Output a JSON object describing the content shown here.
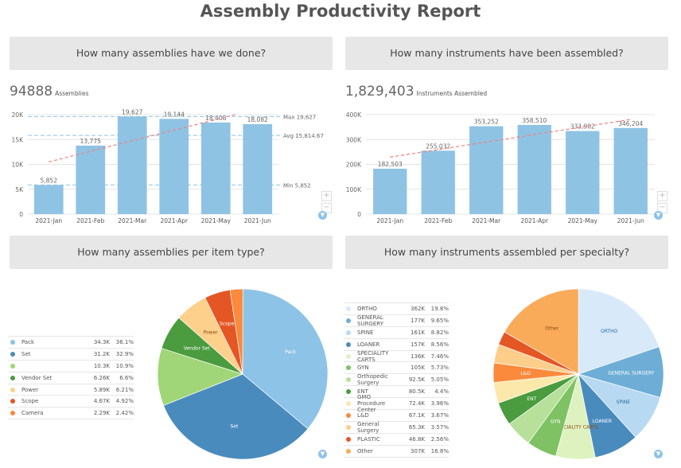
{
  "title": "Assembly Productivity Report",
  "panels": {
    "assemblies": {
      "header": "How many assemblies have we done?",
      "kpi_value": "94888",
      "kpi_label": "Assemblies"
    },
    "instruments": {
      "header": "How many instruments have been assembled?",
      "kpi_value": "1,829,403",
      "kpi_label": "Instruments Assembled"
    },
    "item_type": {
      "header": "How many assemblies per item type?"
    },
    "specialty": {
      "header": "How many instruments assembled per specialty?"
    }
  },
  "icons": {
    "zoom_in": "plus-icon",
    "zoom_out": "minus-icon",
    "filter": "filter-icon"
  },
  "chart_data": [
    {
      "type": "bar",
      "id": "assemblies",
      "categories": [
        "2021-Jan",
        "2021-Feb",
        "2021-Mar",
        "2021-Apr",
        "2021-May",
        "2021-Jun"
      ],
      "values": [
        5852,
        13775,
        19627,
        19144,
        18408,
        18082
      ],
      "value_labels": [
        "5,852",
        "13,775",
        "19,627",
        "19,144",
        "18,408",
        "18,082"
      ],
      "yticks": [
        "0",
        "5K",
        "10K",
        "15K",
        "20K"
      ],
      "ylim": [
        0,
        20000
      ],
      "grid": true,
      "trendline": true,
      "reference_lines": [
        {
          "label": "Max 19,627",
          "value": 19627
        },
        {
          "label": "Avg 15,814.67",
          "value": 15814.67
        },
        {
          "label": "Min 5,852",
          "value": 5852
        }
      ],
      "bar_color": "#8fc3e3",
      "trend_color": "#f08080"
    },
    {
      "type": "bar",
      "id": "instruments",
      "categories": [
        "2021-Jan",
        "2021-Feb",
        "2021-Mar",
        "2021-Apr",
        "2021-May",
        "2021-Jun"
      ],
      "values": [
        182503,
        255032,
        353252,
        358510,
        333902,
        346204
      ],
      "value_labels": [
        "182,503",
        "255,032",
        "353,252",
        "358,510",
        "333,902",
        "346,204"
      ],
      "yticks": [
        "0",
        "100K",
        "200K",
        "300K",
        "400K"
      ],
      "ylim": [
        0,
        400000
      ],
      "grid": true,
      "trendline": true,
      "bar_color": "#8fc3e3",
      "trend_color": "#f08080"
    },
    {
      "type": "pie",
      "id": "item_type",
      "legend": "left",
      "slices": [
        {
          "name": "Pack",
          "value_label": "34.3K",
          "percent_label": "36.1%",
          "percent": 36.1,
          "color": "#8dc3e6",
          "slice_label": "Pack"
        },
        {
          "name": "Set",
          "value_label": "31.2K",
          "percent_label": "32.9%",
          "percent": 32.9,
          "color": "#4a8bbd",
          "slice_label": "Set"
        },
        {
          "name": "",
          "value_label": "10.3K",
          "percent_label": "10.9%",
          "percent": 10.9,
          "color": "#a0d677",
          "slice_label": ""
        },
        {
          "name": "Vendor Set",
          "value_label": "6.26K",
          "percent_label": "6.6%",
          "percent": 6.6,
          "color": "#4a9c3f",
          "slice_label": "Vendor Set"
        },
        {
          "name": "Power",
          "value_label": "5.89K",
          "percent_label": "6.21%",
          "percent": 6.21,
          "color": "#fdd08b",
          "slice_label": "Power"
        },
        {
          "name": "Scope",
          "value_label": "4.67K",
          "percent_label": "4.92%",
          "percent": 4.92,
          "color": "#e55625",
          "slice_label": "Scope"
        },
        {
          "name": "Camera",
          "value_label": "2.29K",
          "percent_label": "2.42%",
          "percent": 2.42,
          "color": "#fb8a3c",
          "slice_label": ""
        }
      ]
    },
    {
      "type": "pie",
      "id": "specialty",
      "legend": "left",
      "slices": [
        {
          "name": "ORTHO",
          "value_label": "362K",
          "percent_label": "19.8%",
          "percent": 19.8,
          "color": "#d8e9fa",
          "slice_label": "ORTHO"
        },
        {
          "name": "GENERAL SURGERY",
          "value_label": "177K",
          "percent_label": "9.65%",
          "percent": 9.65,
          "color": "#6eaed6",
          "slice_label": "GENERAL SURGERY"
        },
        {
          "name": "SPINE",
          "value_label": "161K",
          "percent_label": "8.82%",
          "percent": 8.82,
          "color": "#b8d9f2",
          "slice_label": "SPINE"
        },
        {
          "name": "LOANER",
          "value_label": "157K",
          "percent_label": "8.56%",
          "percent": 8.56,
          "color": "#4a8bbd",
          "slice_label": "LOANER"
        },
        {
          "name": "SPECIALITY CARTS",
          "value_label": "136K",
          "percent_label": "7.46%",
          "percent": 7.46,
          "color": "#def2c0",
          "slice_label": "SPECIALITY CARTS"
        },
        {
          "name": "GYN",
          "value_label": "105K",
          "percent_label": "5.73%",
          "percent": 5.73,
          "color": "#7ec263",
          "slice_label": "GYN"
        },
        {
          "name": "Orthopedic Surgery",
          "value_label": "92.5K",
          "percent_label": "5.05%",
          "percent": 5.05,
          "color": "#b7e09a",
          "slice_label": ""
        },
        {
          "name": "ENT",
          "value_label": "80.5K",
          "percent_label": "4.4%",
          "percent": 4.4,
          "color": "#4a9c3f",
          "slice_label": "ENT"
        },
        {
          "name": "GMO Procedure Center",
          "value_label": "72.4K",
          "percent_label": "3.96%",
          "percent": 3.96,
          "color": "#fde8ac",
          "slice_label": ""
        },
        {
          "name": "L&D",
          "value_label": "67.1K",
          "percent_label": "3.67%",
          "percent": 3.67,
          "color": "#fb8a3c",
          "slice_label": "L&D"
        },
        {
          "name": "General Surgery",
          "value_label": "65.3K",
          "percent_label": "3.57%",
          "percent": 3.57,
          "color": "#fdcd8a",
          "slice_label": ""
        },
        {
          "name": "PLASTIC",
          "value_label": "46.8K",
          "percent_label": "2.56%",
          "percent": 2.56,
          "color": "#e55625",
          "slice_label": ""
        },
        {
          "name": "Other",
          "value_label": "307K",
          "percent_label": "16.8%",
          "percent": 16.8,
          "color": "#f9ab5a",
          "slice_label": "Other"
        }
      ]
    }
  ]
}
